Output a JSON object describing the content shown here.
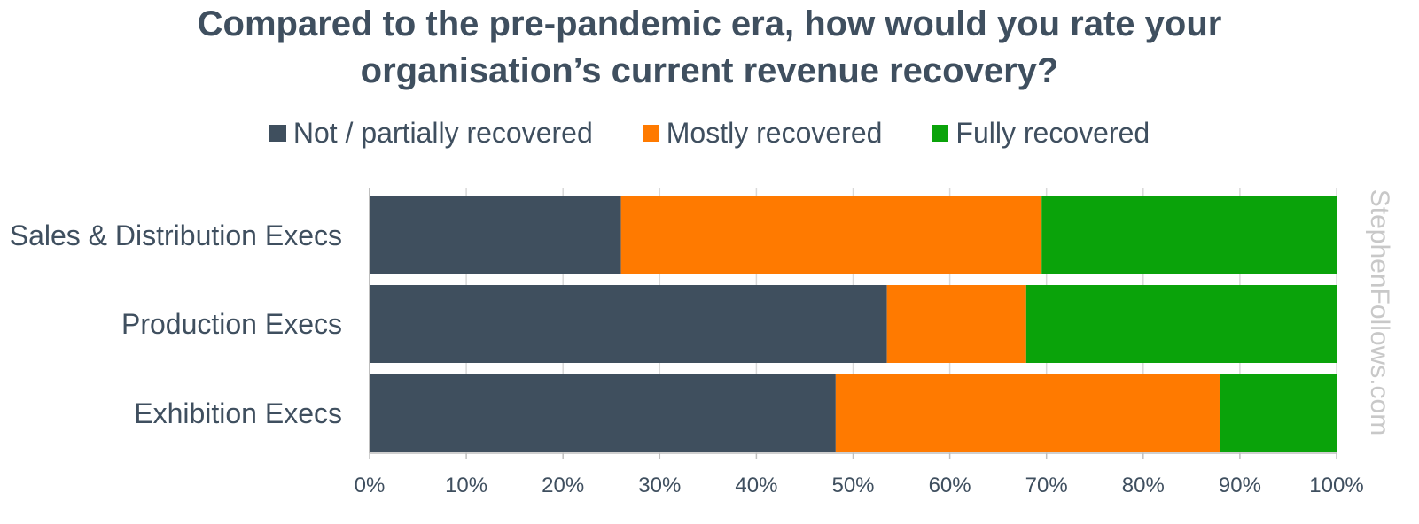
{
  "title_lines": [
    "Compared to the pre-pandemic era, how would you rate your",
    "organisation’s current revenue recovery?"
  ],
  "watermark": "StephenFollows.com",
  "colors": {
    "not_recovered": "#3f4f5e",
    "mostly_recovered": "#ff7a00",
    "fully_recovered": "#0aa30a",
    "text": "#3f4f5f",
    "grid": "#d9d9d9",
    "watermark": "#c8c8c8"
  },
  "chart_data": {
    "type": "bar",
    "orientation": "horizontal",
    "stacked": true,
    "categories": [
      "Sales & Distribution Execs",
      "Production Execs",
      "Exhibition Execs"
    ],
    "series": [
      {
        "name": "Not / partially recovered",
        "values": [
          26,
          53.5,
          48.2
        ]
      },
      {
        "name": "Mostly recovered",
        "values": [
          43.5,
          14.4,
          39.7
        ]
      },
      {
        "name": "Fully recovered",
        "values": [
          30.5,
          32.1,
          12.1
        ]
      }
    ],
    "xlim": [
      0,
      100
    ],
    "xticks": [
      "0%",
      "10%",
      "20%",
      "30%",
      "40%",
      "50%",
      "60%",
      "70%",
      "80%",
      "90%",
      "100%"
    ],
    "grid": true,
    "legend_position": "top-center"
  }
}
